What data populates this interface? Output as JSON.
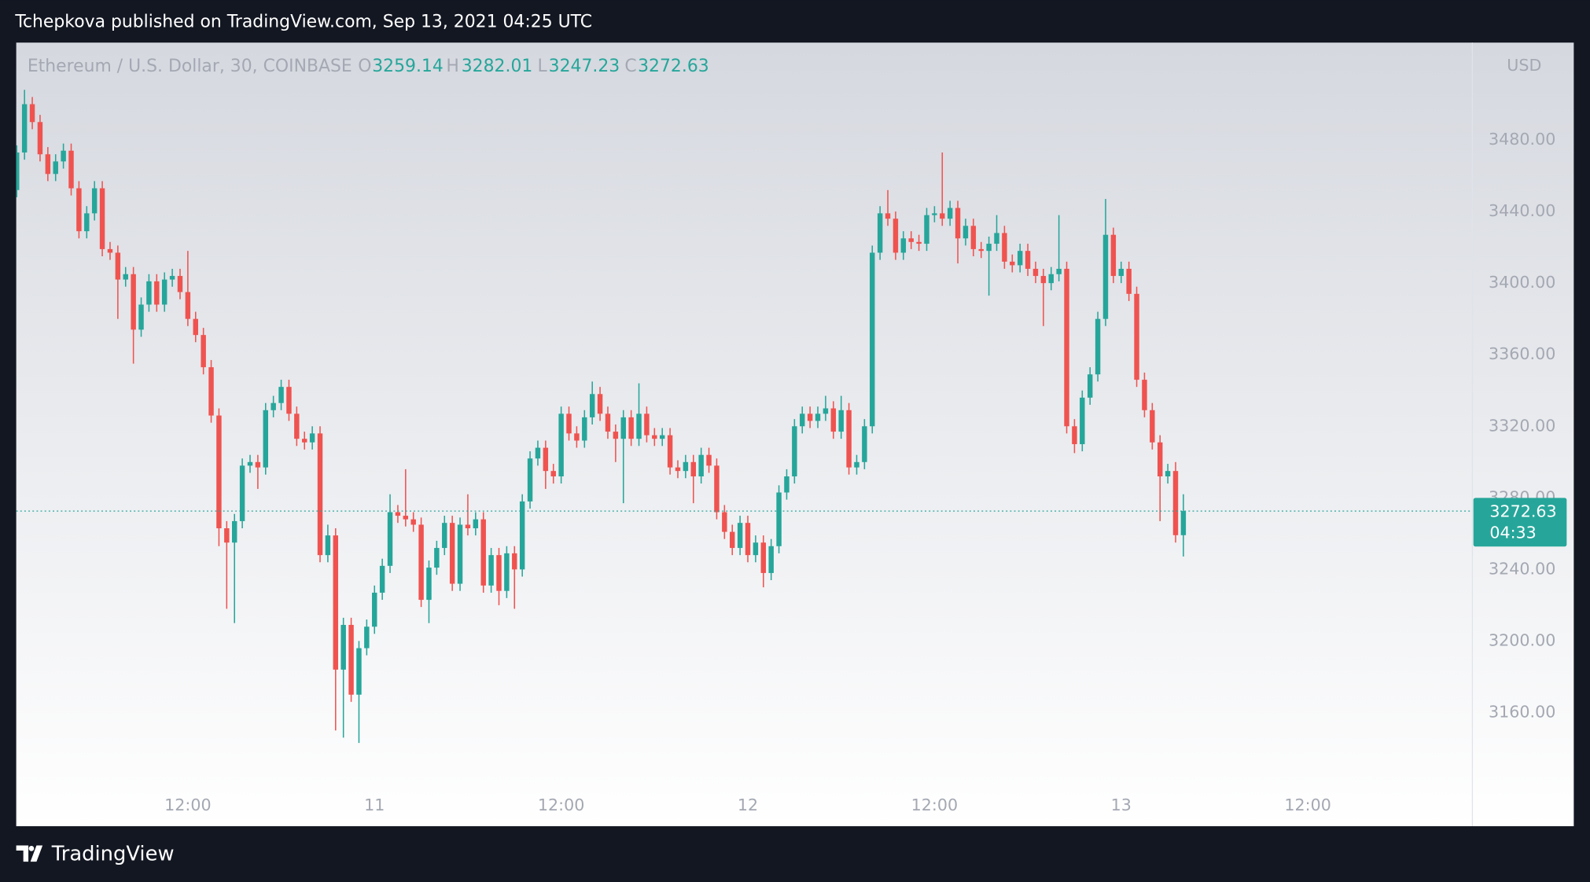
{
  "header": {
    "text": "Tchepkova published on TradingView.com, Sep 13, 2021 04:25 UTC"
  },
  "footer": {
    "brand": "TradingView"
  },
  "chart_data": {
    "type": "candlestick",
    "title": "Ethereum / U.S. Dollar, 30, COINBASE",
    "legend_labels": [
      "O",
      "H",
      "L",
      "C"
    ],
    "currency": "USD",
    "countdown": "04:33",
    "up_color": "#26a69a",
    "down_color": "#ef5350",
    "xlim": [
      0,
      187
    ],
    "xticks": [
      {
        "value": 22,
        "label": "12:00"
      },
      {
        "value": 46,
        "label": "11"
      },
      {
        "value": 70,
        "label": "12:00"
      },
      {
        "value": 94,
        "label": "12"
      },
      {
        "value": 118,
        "label": "12:00"
      },
      {
        "value": 142,
        "label": "13"
      },
      {
        "value": 166,
        "label": "12:00"
      }
    ],
    "ylim": [
      3096.5,
      3532.7
    ],
    "yticks": [
      {
        "value": 3160,
        "label": "3160.00"
      },
      {
        "value": 3200,
        "label": "3200.00"
      },
      {
        "value": 3240,
        "label": "3240.00"
      },
      {
        "value": 3280,
        "label": "3280.00"
      },
      {
        "value": 3320,
        "label": "3320.00"
      },
      {
        "value": 3360,
        "label": "3360.00"
      },
      {
        "value": 3400,
        "label": "3400.00"
      },
      {
        "value": 3440,
        "label": "3440.00"
      },
      {
        "value": 3480,
        "label": "3480.00"
      }
    ],
    "open": [
      3452,
      3473,
      3500,
      3490,
      3472,
      3461,
      3468,
      3474,
      3453,
      3429,
      3439,
      3453,
      3419,
      3417,
      3402,
      3405,
      3374,
      3388,
      3401,
      3388,
      3402,
      3404,
      3395,
      3380,
      3371,
      3353,
      3326,
      3263,
      3255,
      3267,
      3298,
      3300,
      3297,
      3329,
      3333,
      3342,
      3327,
      3313,
      3311,
      3316,
      3248,
      3259,
      3184,
      3209,
      3170,
      3196,
      3208,
      3227,
      3242,
      3272,
      3270,
      3268,
      3265,
      3223,
      3241,
      3252,
      3266,
      3232,
      3265,
      3263,
      3268,
      3231,
      3248,
      3228,
      3249,
      3240,
      3278,
      3302,
      3308,
      3295,
      3292,
      3327,
      3316,
      3312,
      3325,
      3338,
      3327,
      3317,
      3313,
      3325,
      3313,
      3327,
      3315,
      3313,
      3315,
      3297,
      3295,
      3300,
      3292,
      3304,
      3298,
      3272,
      3261,
      3252,
      3266,
      3248,
      3255,
      3238,
      3253,
      3283,
      3292,
      3320,
      3327,
      3323,
      3327,
      3330,
      3317,
      3329,
      3297,
      3300,
      3320,
      3417,
      3439,
      3436,
      3417,
      3425,
      3423,
      3422,
      3438,
      3439,
      3436,
      3442,
      3425,
      3432,
      3419,
      3418,
      3422,
      3428,
      3412,
      3410,
      3418,
      3408,
      3404,
      3400,
      3405,
      3408,
      3320,
      3310,
      3336,
      3349,
      3380,
      3427,
      3404,
      3408,
      3394,
      3346,
      3329,
      3311,
      3292,
      3295,
      3259.14
    ],
    "high": [
      3477,
      3508,
      3504,
      3494,
      3476,
      3472,
      3478,
      3478,
      3457,
      3443,
      3457,
      3457,
      3423,
      3421,
      3409,
      3409,
      3392,
      3405,
      3405,
      3406,
      3408,
      3408,
      3418,
      3384,
      3375,
      3357,
      3330,
      3267,
      3271,
      3302,
      3304,
      3304,
      3333,
      3337,
      3346,
      3346,
      3331,
      3317,
      3320,
      3320,
      3265,
      3263,
      3213,
      3213,
      3200,
      3212,
      3231,
      3246,
      3282,
      3276,
      3296,
      3272,
      3269,
      3245,
      3256,
      3270,
      3270,
      3269,
      3282,
      3272,
      3272,
      3252,
      3252,
      3253,
      3253,
      3282,
      3306,
      3312,
      3312,
      3299,
      3331,
      3331,
      3320,
      3329,
      3345,
      3342,
      3331,
      3321,
      3329,
      3329,
      3344,
      3331,
      3319,
      3319,
      3319,
      3301,
      3304,
      3304,
      3308,
      3308,
      3302,
      3276,
      3265,
      3270,
      3270,
      3259,
      3259,
      3257,
      3287,
      3296,
      3324,
      3331,
      3331,
      3331,
      3337,
      3334,
      3337,
      3333,
      3304,
      3324,
      3421,
      3443,
      3452,
      3440,
      3429,
      3429,
      3427,
      3442,
      3443,
      3473,
      3446,
      3446,
      3436,
      3436,
      3423,
      3426,
      3438,
      3432,
      3416,
      3422,
      3422,
      3412,
      3408,
      3409,
      3438,
      3412,
      3324,
      3340,
      3353,
      3384,
      3447,
      3431,
      3412,
      3412,
      3398,
      3350,
      3333,
      3315,
      3299,
      3300,
      3282.01
    ],
    "low": [
      3448,
      3469,
      3486,
      3468,
      3457,
      3457,
      3464,
      3449,
      3425,
      3425,
      3435,
      3415,
      3413,
      3380,
      3398,
      3355,
      3370,
      3384,
      3384,
      3384,
      3398,
      3391,
      3376,
      3367,
      3349,
      3322,
      3253,
      3218,
      3210,
      3263,
      3294,
      3285,
      3293,
      3325,
      3329,
      3323,
      3309,
      3307,
      3307,
      3244,
      3244,
      3150,
      3146,
      3166,
      3143,
      3192,
      3204,
      3223,
      3238,
      3266,
      3264,
      3261,
      3219,
      3210,
      3237,
      3248,
      3228,
      3228,
      3259,
      3259,
      3227,
      3227,
      3220,
      3224,
      3218,
      3236,
      3274,
      3298,
      3285,
      3288,
      3288,
      3312,
      3308,
      3308,
      3321,
      3323,
      3313,
      3300,
      3277,
      3309,
      3309,
      3311,
      3309,
      3309,
      3293,
      3291,
      3291,
      3277,
      3288,
      3294,
      3268,
      3257,
      3248,
      3248,
      3244,
      3244,
      3230,
      3234,
      3249,
      3279,
      3288,
      3316,
      3319,
      3319,
      3323,
      3313,
      3313,
      3293,
      3293,
      3296,
      3316,
      3413,
      3432,
      3413,
      3413,
      3419,
      3418,
      3418,
      3434,
      3432,
      3432,
      3411,
      3421,
      3415,
      3414,
      3393,
      3418,
      3408,
      3406,
      3406,
      3404,
      3400,
      3376,
      3396,
      3401,
      3316,
      3305,
      3306,
      3332,
      3345,
      3376,
      3400,
      3400,
      3390,
      3342,
      3325,
      3307,
      3267,
      3288,
      3255,
      3247.23
    ],
    "close": [
      3473,
      3500,
      3490,
      3472,
      3461,
      3468,
      3474,
      3453,
      3429,
      3439,
      3453,
      3419,
      3417,
      3402,
      3405,
      3374,
      3388,
      3401,
      3388,
      3402,
      3404,
      3395,
      3380,
      3371,
      3353,
      3326,
      3263,
      3255,
      3267,
      3298,
      3300,
      3297,
      3329,
      3333,
      3342,
      3327,
      3313,
      3311,
      3316,
      3248,
      3259,
      3184,
      3209,
      3170,
      3196,
      3208,
      3227,
      3242,
      3272,
      3270,
      3268,
      3265,
      3223,
      3241,
      3252,
      3266,
      3232,
      3265,
      3263,
      3268,
      3231,
      3248,
      3228,
      3249,
      3240,
      3278,
      3302,
      3308,
      3295,
      3292,
      3327,
      3316,
      3312,
      3325,
      3338,
      3327,
      3317,
      3313,
      3325,
      3313,
      3327,
      3315,
      3313,
      3315,
      3297,
      3295,
      3300,
      3292,
      3304,
      3298,
      3272,
      3261,
      3252,
      3266,
      3248,
      3255,
      3238,
      3253,
      3283,
      3292,
      3320,
      3327,
      3323,
      3327,
      3330,
      3317,
      3329,
      3297,
      3300,
      3320,
      3417,
      3439,
      3436,
      3417,
      3425,
      3423,
      3422,
      3438,
      3439,
      3436,
      3442,
      3425,
      3432,
      3419,
      3418,
      3422,
      3428,
      3412,
      3410,
      3418,
      3408,
      3404,
      3400,
      3405,
      3408,
      3320,
      3310,
      3336,
      3349,
      3380,
      3427,
      3404,
      3408,
      3394,
      3346,
      3329,
      3311,
      3292,
      3295,
      3259.14,
      3272.63
    ]
  }
}
